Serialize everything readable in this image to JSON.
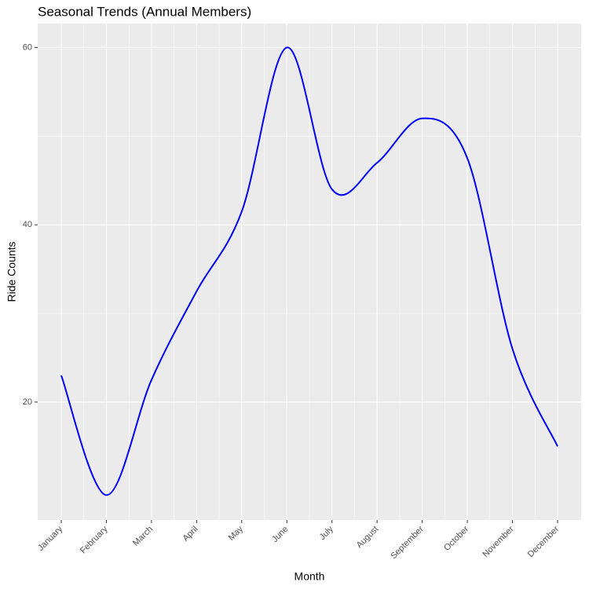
{
  "chart_data": {
    "type": "line",
    "title": "Seasonal Trends (Annual Members)",
    "x_label": "Month",
    "y_label": "Ride Counts",
    "categories": [
      "January",
      "February",
      "March",
      "April",
      "May",
      "June",
      "July",
      "August",
      "September",
      "October",
      "November",
      "December"
    ],
    "series": [
      {
        "color": "#0000FF",
        "values": [
          23,
          9.5,
          22.5,
          32.5,
          41.5,
          60,
          44,
          47,
          52,
          47.5,
          26,
          15
        ]
      }
    ],
    "ylim": [
      6.7,
      62.7
    ],
    "yticks": [
      20,
      40,
      60
    ],
    "grid": true,
    "smooth": true
  }
}
